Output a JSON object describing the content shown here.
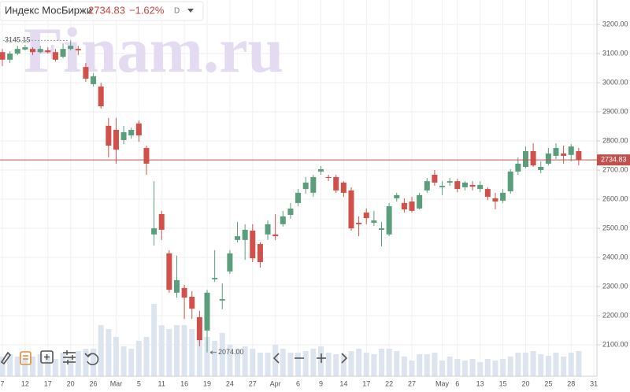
{
  "chart_data": {
    "type": "candlestick",
    "title": "Индекс МосБиржи",
    "last_price": 2734.83,
    "change": {
      "value": -1.62,
      "label": "−1.62%"
    },
    "interval": "D",
    "watermark": "Finam.ru",
    "high_marker": 3145.15,
    "low_marker": {
      "value": 2074,
      "label": "2074.00"
    },
    "up_color": "#5a9e7c",
    "down_color": "#d2504a",
    "volume_color": "#dce5ef",
    "price_line_color": "#c0504d",
    "grid": true,
    "categories": [
      "7",
      null,
      null,
      "12",
      null,
      null,
      "17",
      null,
      null,
      "20",
      null,
      null,
      "26",
      null,
      null,
      "Mar",
      null,
      null,
      "5",
      null,
      null,
      "11",
      null,
      null,
      "16",
      null,
      null,
      "19",
      null,
      null,
      "24",
      null,
      null,
      "27",
      null,
      null,
      "Apr",
      null,
      null,
      "6",
      null,
      null,
      "9",
      null,
      null,
      "14",
      null,
      null,
      "17",
      null,
      null,
      "22",
      null,
      null,
      "27",
      null,
      null,
      null,
      "May",
      null,
      "6",
      null,
      null,
      "13",
      null,
      null,
      "15",
      null,
      null,
      "20",
      null,
      null,
      "25",
      null,
      null,
      "28",
      null,
      null,
      "31"
    ],
    "open": [
      3105,
      3079,
      3100,
      3114,
      3116,
      3105,
      3111,
      3105,
      3089,
      3116,
      3116,
      3054,
      2995,
      2987,
      2852,
      2838,
      2803,
      2819,
      2860,
      2776,
      2479,
      2549,
      2414,
      2279,
      2295,
      2265,
      2195,
      2149,
      2325,
      2252,
      2352,
      2460,
      2460,
      2492,
      2446,
      2479,
      2479,
      2514,
      2546,
      2587,
      2635,
      2622,
      2695,
      2676,
      2676,
      2657,
      2630,
      2519,
      2554,
      2519,
      2495,
      2479,
      2603,
      2587,
      2592,
      2568,
      2630,
      2684,
      2641,
      2657,
      2662,
      2641,
      2649,
      2635,
      2635,
      2603,
      2595,
      2627,
      2695,
      2711,
      2765,
      2700,
      2722,
      2749,
      2757,
      2752,
      2765,
      null,
      null
    ],
    "high": [
      3116,
      3108,
      3127,
      3130,
      3122,
      3127,
      3122,
      3116,
      3135,
      3145.15,
      3127,
      3068,
      3033,
      3000,
      2879,
      2879,
      2852,
      2846,
      2870,
      2784,
      2662,
      2560,
      2425,
      2406,
      2306,
      2284,
      2216,
      2289,
      2425,
      2311,
      2425,
      2522,
      2514,
      2514,
      2452,
      2527,
      2549,
      2560,
      2587,
      2635,
      2676,
      2684,
      2714,
      2684,
      2684,
      2662,
      2641,
      2541,
      2568,
      2560,
      2522,
      2587,
      2622,
      2603,
      2608,
      2622,
      2673,
      2700,
      2662,
      2673,
      2670,
      2662,
      2662,
      2662,
      2641,
      2622,
      2635,
      2703,
      2743,
      2781,
      2792,
      2730,
      2776,
      2792,
      2784,
      2789,
      2776,
      null,
      null
    ],
    "low": [
      3057,
      3068,
      3095,
      3111,
      3095,
      3100,
      3100,
      3073,
      3084,
      3111,
      3095,
      3003,
      2987,
      2911,
      2743,
      2722,
      2789,
      2808,
      2797,
      2684,
      2441,
      2460,
      2279,
      2262,
      2189,
      2189,
      2095,
      2074,
      2316,
      2222,
      2343,
      2452,
      2392,
      2384,
      2365,
      2460,
      2460,
      2506,
      2533,
      2576,
      2619,
      2608,
      2684,
      2662,
      2622,
      2608,
      2492,
      2473,
      2514,
      2508,
      2438,
      2473,
      2592,
      2554,
      2554,
      2565,
      2622,
      2646,
      2614,
      2646,
      2624,
      2630,
      2630,
      2624,
      2597,
      2565,
      2587,
      2619,
      2684,
      2706,
      2711,
      2689,
      2716,
      2738,
      2722,
      2730,
      2716,
      null,
      null
    ],
    "close": [
      3079,
      3100,
      3116,
      3122,
      3105,
      3116,
      3105,
      3079,
      3116,
      3127,
      3111,
      3014,
      3022,
      2919,
      2784,
      2770,
      2830,
      2838,
      2819,
      2722,
      2500,
      2495,
      2289,
      2322,
      2262,
      2224,
      2116,
      2279,
      2330,
      2257,
      2414,
      2473,
      2495,
      2397,
      2384,
      2514,
      2473,
      2541,
      2568,
      2622,
      2657,
      2676,
      2703,
      2673,
      2630,
      2622,
      2500,
      2514,
      2535,
      2527,
      2500,
      2576,
      2614,
      2565,
      2560,
      2614,
      2662,
      2657,
      2646,
      2662,
      2635,
      2657,
      2643,
      2649,
      2608,
      2592,
      2622,
      2695,
      2722,
      2765,
      2716,
      2711,
      2757,
      2776,
      2749,
      2781,
      2734.83,
      null,
      null
    ],
    "volume": [
      25,
      28,
      25,
      22,
      25,
      28,
      25,
      22,
      30,
      25,
      32,
      35,
      35,
      65,
      60,
      50,
      38,
      35,
      45,
      50,
      92,
      65,
      60,
      65,
      65,
      60,
      55,
      50,
      45,
      55,
      40,
      35,
      38,
      35,
      30,
      30,
      40,
      35,
      30,
      30,
      32,
      35,
      38,
      30,
      28,
      28,
      32,
      35,
      30,
      28,
      35,
      35,
      32,
      25,
      20,
      28,
      28,
      30,
      20,
      25,
      22,
      20,
      22,
      18,
      22,
      20,
      22,
      25,
      30,
      30,
      32,
      28,
      26,
      30,
      25,
      30,
      32,
      null,
      null
    ],
    "ylim": [
      1992,
      3284
    ],
    "yticks": [
      {
        "value": 2100,
        "label": "2100.00"
      },
      {
        "value": 2200,
        "label": "2200.00"
      },
      {
        "value": 2300,
        "label": "2300.00"
      },
      {
        "value": 2400,
        "label": "2400.00"
      },
      {
        "value": 2500,
        "label": "2500.00"
      },
      {
        "value": 2600,
        "label": "2600.00"
      },
      {
        "value": 2700,
        "label": "2700.00"
      },
      {
        "value": 2800,
        "label": "2800.00"
      },
      {
        "value": 2900,
        "label": "2900.00"
      },
      {
        "value": 3000,
        "label": "3000.00"
      },
      {
        "value": 3100,
        "label": "3100.00"
      },
      {
        "value": 3200,
        "label": "3200.00"
      }
    ]
  }
}
